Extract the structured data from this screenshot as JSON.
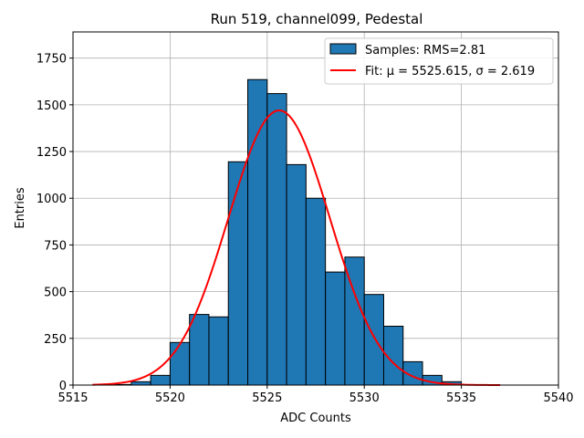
{
  "chart_data": {
    "type": "bar",
    "title": "Run 519, channel099, Pedestal",
    "xlabel": "ADC Counts",
    "ylabel": "Entries",
    "xlim": [
      5515,
      5540
    ],
    "ylim": [
      0,
      1890
    ],
    "xticks": [
      5515,
      5520,
      5525,
      5530,
      5535,
      5540
    ],
    "yticks": [
      0,
      250,
      500,
      750,
      1000,
      1250,
      1500,
      1750
    ],
    "grid": true,
    "legend_position": "top-right",
    "histogram": {
      "name": "Samples: RMS=2.81",
      "color": "#1f77b4",
      "edgecolor": "#000000",
      "bins": [
        {
          "x0": 5517,
          "x1": 5518,
          "value": 3
        },
        {
          "x0": 5518,
          "x1": 5519,
          "value": 18
        },
        {
          "x0": 5519,
          "x1": 5520,
          "value": 52
        },
        {
          "x0": 5520,
          "x1": 5521,
          "value": 228
        },
        {
          "x0": 5521,
          "x1": 5522,
          "value": 378
        },
        {
          "x0": 5522,
          "x1": 5523,
          "value": 365
        },
        {
          "x0": 5523,
          "x1": 5524,
          "value": 1195
        },
        {
          "x0": 5524,
          "x1": 5525,
          "value": 1635
        },
        {
          "x0": 5525,
          "x1": 5526,
          "value": 1560
        },
        {
          "x0": 5526,
          "x1": 5527,
          "value": 1180
        },
        {
          "x0": 5527,
          "x1": 5528,
          "value": 1000
        },
        {
          "x0": 5528,
          "x1": 5529,
          "value": 605
        },
        {
          "x0": 5529,
          "x1": 5530,
          "value": 685
        },
        {
          "x0": 5530,
          "x1": 5531,
          "value": 485
        },
        {
          "x0": 5531,
          "x1": 5532,
          "value": 315
        },
        {
          "x0": 5532,
          "x1": 5533,
          "value": 125
        },
        {
          "x0": 5533,
          "x1": 5534,
          "value": 52
        },
        {
          "x0": 5534,
          "x1": 5535,
          "value": 18
        }
      ]
    },
    "fit": {
      "name": "Fit: μ = 5525.615, σ = 2.619",
      "color": "#ff0000",
      "mu": 5525.615,
      "sigma": 2.619,
      "amplitude": 1470,
      "x_range": [
        5516,
        5537
      ]
    }
  }
}
